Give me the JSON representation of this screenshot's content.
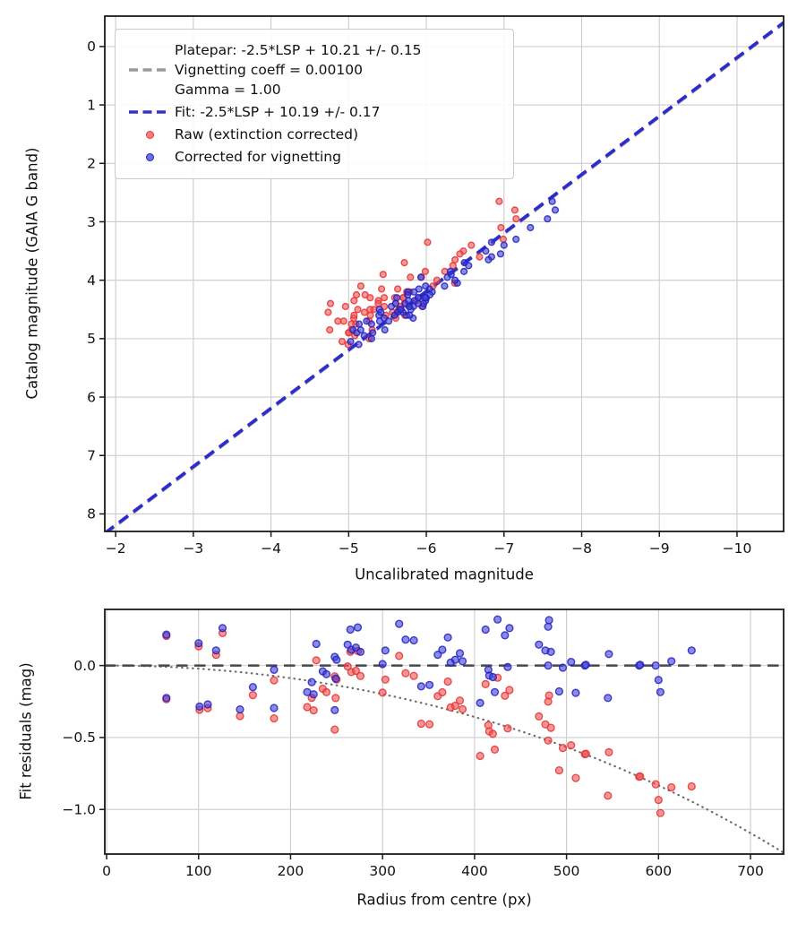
{
  "legend": {
    "platepar": "Platepar: -2.5*LSP + 10.21 +/- 0.15",
    "vignetting": "Vignetting coeff = 0.00100",
    "gamma": "Gamma = 1.00",
    "fit": "Fit: -2.5*LSP + 10.19 +/- 0.17",
    "raw": "Raw (extinction corrected)",
    "corrected": "Corrected for vignetting"
  },
  "model": {
    "platepar_intercept": 10.21,
    "platepar_uncertainty": 0.15,
    "fit_intercept": 10.19,
    "fit_uncertainty": 0.17,
    "vignetting_coeff": 0.001,
    "gamma": 1.0
  },
  "colors": {
    "raw": {
      "fill": "#fa5050",
      "stroke": "#e03535"
    },
    "corrected": {
      "fill": "#3c3cdd",
      "stroke": "#2222bb"
    },
    "fit_line": "#2b2bd0",
    "platepar_line": "#999999",
    "zero_line": "#484848",
    "vignetting_curve": "#6e6e6e",
    "grid": "#cccccc",
    "spine": "#1a1a1a",
    "text": "#111111"
  },
  "chart_data": [
    {
      "type": "scatter",
      "title": "",
      "xlabel": "Uncalibrated magnitude",
      "ylabel": "Catalog magnitude (GAIA G band)",
      "xlim": [
        -1.86,
        -10.6
      ],
      "ylim": [
        -0.52,
        8.3
      ],
      "x_axis_inverted": true,
      "y_axis_inverted": true,
      "grid": true,
      "legend_position": "upper left",
      "xticks": [
        -2,
        -3,
        -4,
        -5,
        -6,
        -7,
        -8,
        -9,
        -10
      ],
      "xtick_labels": [
        "−2",
        "−3",
        "−4",
        "−5",
        "−6",
        "−7",
        "−8",
        "−9",
        "−10"
      ],
      "yticks": [
        0,
        1,
        2,
        3,
        4,
        5,
        6,
        7,
        8
      ],
      "ytick_labels": [
        "0",
        "1",
        "2",
        "3",
        "4",
        "5",
        "6",
        "7",
        "8"
      ],
      "lines": [
        {
          "name": "platepar-line",
          "slope": 1,
          "intercept": 10.21,
          "style": "dashed",
          "color_key": "platepar_line",
          "width": 3.0
        },
        {
          "name": "fit-line",
          "slope": 1,
          "intercept": 10.19,
          "style": "dashed",
          "color_key": "fit_line",
          "width": 3.6
        }
      ],
      "scatter": [
        {
          "name": "raw-points",
          "source": "stars_top_raw",
          "color_key": "raw"
        },
        {
          "name": "corrected-points",
          "source": "stars_top_corrected",
          "color_key": "corrected"
        }
      ],
      "marker_radius": 3.4
    },
    {
      "type": "scatter",
      "title": "",
      "xlabel": "Radius from centre (px)",
      "ylabel": "Fit residuals (mag)",
      "xlim": [
        -2,
        736
      ],
      "ylim": [
        0.39,
        -1.31
      ],
      "grid": true,
      "xticks": [
        0,
        100,
        200,
        300,
        400,
        500,
        600,
        700
      ],
      "xtick_labels": [
        "0",
        "100",
        "200",
        "300",
        "400",
        "500",
        "600",
        "700"
      ],
      "yticks": [
        0,
        -0.5,
        -1.0
      ],
      "ytick_labels": [
        "0.0",
        "−0.5",
        "−1.0"
      ],
      "lines": [
        {
          "name": "zero-residual-line",
          "slope": 0,
          "intercept": 0,
          "style": "dashed",
          "color_key": "zero_line",
          "width": 2.6
        }
      ],
      "curve": {
        "name": "vignetting-model-curve",
        "formula": "10*log10(cos(coeff*r))",
        "style": "dotted",
        "color_key": "vignetting_curve",
        "width": 2.2
      },
      "scatter": [
        {
          "name": "raw-points",
          "source": "stars_bottom_raw",
          "color_key": "raw"
        },
        {
          "name": "corrected-points",
          "source": "stars_bottom_corrected",
          "color_key": "corrected"
        }
      ],
      "marker_radius": 3.9
    }
  ],
  "stars": {
    "columns": [
      "radius_px",
      "catalog_mag",
      "corrected_fit_residual_mag"
    ],
    "rows": [
      [
        65,
        4.45,
        0.215
      ],
      [
        65,
        4.2,
        -0.225
      ],
      [
        100,
        4.6,
        0.155
      ],
      [
        101,
        4.85,
        -0.285
      ],
      [
        110,
        4.3,
        -0.27
      ],
      [
        119,
        5.0,
        0.105
      ],
      [
        126,
        4.05,
        0.26
      ],
      [
        145,
        4.75,
        -0.305
      ],
      [
        159,
        4.2,
        -0.15
      ],
      [
        182,
        3.85,
        -0.03
      ],
      [
        182,
        4.5,
        -0.295
      ],
      [
        218,
        4.9,
        -0.185
      ],
      [
        223,
        5.05,
        -0.115
      ],
      [
        225,
        4.6,
        -0.2
      ],
      [
        228,
        4.35,
        0.15
      ],
      [
        235,
        4.95,
        -0.04
      ],
      [
        239,
        4.4,
        -0.06
      ],
      [
        248,
        4.55,
        0.06
      ],
      [
        248,
        3.95,
        -0.31
      ],
      [
        250,
        5.1,
        0.04
      ],
      [
        249,
        4.7,
        -0.09
      ],
      [
        262,
        4.1,
        0.145
      ],
      [
        265,
        3.6,
        0.25
      ],
      [
        266,
        4.5,
        0.11
      ],
      [
        271,
        4.85,
        0.125
      ],
      [
        273,
        3.3,
        0.265
      ],
      [
        276,
        4.45,
        0.095
      ],
      [
        300,
        4.3,
        0.01
      ],
      [
        303,
        3.75,
        0.105
      ],
      [
        318,
        4.65,
        0.29
      ],
      [
        325,
        4.0,
        0.18
      ],
      [
        334,
        4.4,
        0.175
      ],
      [
        342,
        4.75,
        -0.145
      ],
      [
        351,
        4.15,
        -0.135
      ],
      [
        360,
        3.5,
        0.075
      ],
      [
        365,
        4.3,
        0.11
      ],
      [
        371,
        4.6,
        0.195
      ],
      [
        374,
        4.9,
        0.02
      ],
      [
        379,
        4.45,
        0.04
      ],
      [
        384,
        4.2,
        0.085
      ],
      [
        387,
        3.95,
        0.03
      ],
      [
        406,
        4.7,
        -0.26
      ],
      [
        412,
        3.1,
        0.25
      ],
      [
        415,
        4.5,
        -0.03
      ],
      [
        416,
        4.35,
        -0.07
      ],
      [
        420,
        4.65,
        -0.08
      ],
      [
        422,
        4.85,
        -0.185
      ],
      [
        425,
        2.95,
        0.32
      ],
      [
        433,
        3.4,
        0.21
      ],
      [
        438,
        3.65,
        0.26
      ],
      [
        436,
        4.55,
        -0.01
      ],
      [
        470,
        3.85,
        0.145
      ],
      [
        477,
        4.4,
        0.105
      ],
      [
        480,
        2.8,
        0.27
      ],
      [
        481,
        3.55,
        0.315
      ],
      [
        483,
        4.3,
        0.095
      ],
      [
        480,
        4.6,
        0.0
      ],
      [
        492,
        4.25,
        -0.18
      ],
      [
        496,
        4.5,
        -0.015
      ],
      [
        505,
        4.7,
        0.025
      ],
      [
        510,
        4.45,
        -0.19
      ],
      [
        520,
        4.15,
        0.0
      ],
      [
        521,
        4.3,
        0.005
      ],
      [
        545,
        4.55,
        -0.225
      ],
      [
        546,
        2.65,
        0.08
      ],
      [
        579,
        3.7,
        0.0
      ],
      [
        580,
        4.35,
        0.005
      ],
      [
        597,
        3.35,
        0.0
      ],
      [
        600,
        4.1,
        -0.1
      ],
      [
        602,
        4.4,
        -0.185
      ],
      [
        614,
        3.9,
        0.03
      ],
      [
        636,
        4.25,
        0.105
      ]
    ]
  }
}
